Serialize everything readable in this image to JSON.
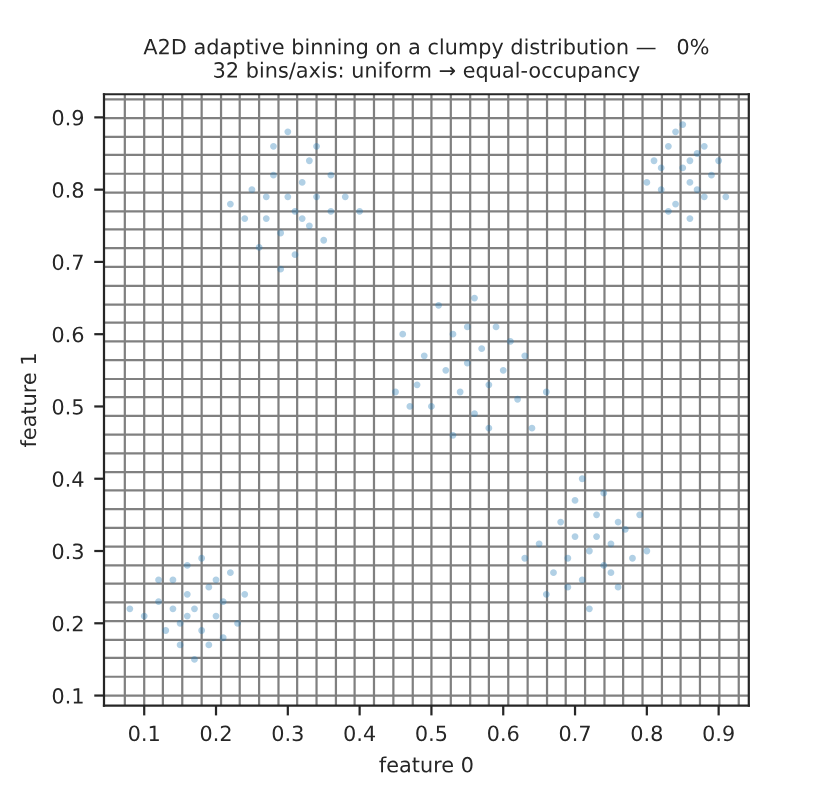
{
  "chart_data": {
    "type": "scatter",
    "title": "A2D adaptive binning on a clumpy distribution —   0%\n32 bins/axis: uniform → equal-occupancy",
    "xlabel": "feature 0",
    "ylabel": "feature 1",
    "xlim": [
      0.044,
      0.942
    ],
    "ylim": [
      0.086,
      0.932
    ],
    "xticks": [
      0.1,
      0.2,
      0.3,
      0.4,
      0.5,
      0.6,
      0.7,
      0.8,
      0.9
    ],
    "yticks": [
      0.1,
      0.2,
      0.3,
      0.4,
      0.5,
      0.6,
      0.7,
      0.8,
      0.9
    ],
    "grid": false,
    "legend": false,
    "series": [
      {
        "color": "#1f77b4",
        "x": [
          0.12,
          0.14,
          0.15,
          0.16,
          0.17,
          0.18,
          0.19,
          0.2,
          0.21,
          0.13,
          0.15,
          0.17,
          0.19,
          0.22,
          0.16,
          0.1,
          0.08,
          0.23,
          0.24,
          0.18,
          0.14,
          0.2,
          0.12,
          0.21,
          0.16,
          0.25,
          0.27,
          0.28,
          0.29,
          0.3,
          0.31,
          0.32,
          0.33,
          0.34,
          0.35,
          0.26,
          0.28,
          0.3,
          0.33,
          0.36,
          0.38,
          0.4,
          0.24,
          0.31,
          0.29,
          0.34,
          0.27,
          0.32,
          0.36,
          0.22,
          0.46,
          0.48,
          0.49,
          0.5,
          0.52,
          0.53,
          0.54,
          0.55,
          0.56,
          0.57,
          0.58,
          0.59,
          0.6,
          0.62,
          0.63,
          0.51,
          0.56,
          0.45,
          0.64,
          0.66,
          0.58,
          0.53,
          0.61,
          0.47,
          0.55,
          0.65,
          0.67,
          0.68,
          0.69,
          0.7,
          0.71,
          0.72,
          0.73,
          0.74,
          0.75,
          0.76,
          0.77,
          0.78,
          0.7,
          0.72,
          0.74,
          0.8,
          0.63,
          0.66,
          0.79,
          0.71,
          0.73,
          0.76,
          0.69,
          0.75,
          0.81,
          0.82,
          0.83,
          0.84,
          0.85,
          0.86,
          0.87,
          0.88,
          0.89,
          0.9,
          0.84,
          0.86,
          0.85,
          0.88,
          0.87,
          0.82,
          0.91,
          0.8,
          0.86,
          0.83
        ],
        "values": [
          0.23,
          0.26,
          0.2,
          0.24,
          0.22,
          0.19,
          0.25,
          0.21,
          0.23,
          0.19,
          0.17,
          0.15,
          0.17,
          0.27,
          0.28,
          0.21,
          0.22,
          0.2,
          0.24,
          0.29,
          0.22,
          0.26,
          0.26,
          0.18,
          0.21,
          0.8,
          0.76,
          0.82,
          0.74,
          0.79,
          0.77,
          0.81,
          0.75,
          0.79,
          0.73,
          0.72,
          0.86,
          0.88,
          0.84,
          0.77,
          0.79,
          0.77,
          0.76,
          0.71,
          0.69,
          0.86,
          0.79,
          0.76,
          0.82,
          0.78,
          0.6,
          0.53,
          0.57,
          0.5,
          0.55,
          0.6,
          0.52,
          0.56,
          0.49,
          0.58,
          0.53,
          0.61,
          0.55,
          0.51,
          0.57,
          0.64,
          0.65,
          0.52,
          0.47,
          0.52,
          0.47,
          0.46,
          0.59,
          0.5,
          0.61,
          0.31,
          0.27,
          0.34,
          0.29,
          0.32,
          0.26,
          0.3,
          0.35,
          0.28,
          0.31,
          0.25,
          0.33,
          0.29,
          0.37,
          0.22,
          0.38,
          0.3,
          0.29,
          0.24,
          0.35,
          0.4,
          0.32,
          0.34,
          0.25,
          0.27,
          0.84,
          0.8,
          0.86,
          0.78,
          0.83,
          0.81,
          0.85,
          0.79,
          0.82,
          0.84,
          0.88,
          0.76,
          0.89,
          0.86,
          0.8,
          0.83,
          0.79,
          0.81,
          0.84,
          0.77
        ]
      }
    ],
    "ref_lines": [
      {
        "axis": "x",
        "value": 0.073,
        "color": "#808080"
      },
      {
        "axis": "x",
        "value": 0.1,
        "color": "#808080"
      },
      {
        "axis": "x",
        "value": 0.126,
        "color": "#808080"
      },
      {
        "axis": "x",
        "value": 0.153,
        "color": "#808080"
      },
      {
        "axis": "x",
        "value": 0.18,
        "color": "#808080"
      },
      {
        "axis": "x",
        "value": 0.207,
        "color": "#808080"
      },
      {
        "axis": "x",
        "value": 0.233,
        "color": "#808080"
      },
      {
        "axis": "x",
        "value": 0.26,
        "color": "#808080"
      },
      {
        "axis": "x",
        "value": 0.287,
        "color": "#808080"
      },
      {
        "axis": "x",
        "value": 0.313,
        "color": "#808080"
      },
      {
        "axis": "x",
        "value": 0.34,
        "color": "#808080"
      },
      {
        "axis": "x",
        "value": 0.367,
        "color": "#808080"
      },
      {
        "axis": "x",
        "value": 0.393,
        "color": "#808080"
      },
      {
        "axis": "x",
        "value": 0.42,
        "color": "#808080"
      },
      {
        "axis": "x",
        "value": 0.447,
        "color": "#808080"
      },
      {
        "axis": "x",
        "value": 0.474,
        "color": "#808080"
      },
      {
        "axis": "x",
        "value": 0.5,
        "color": "#808080"
      },
      {
        "axis": "x",
        "value": 0.527,
        "color": "#808080"
      },
      {
        "axis": "x",
        "value": 0.554,
        "color": "#808080"
      },
      {
        "axis": "x",
        "value": 0.58,
        "color": "#808080"
      },
      {
        "axis": "x",
        "value": 0.607,
        "color": "#808080"
      },
      {
        "axis": "x",
        "value": 0.634,
        "color": "#808080"
      },
      {
        "axis": "x",
        "value": 0.661,
        "color": "#808080"
      },
      {
        "axis": "x",
        "value": 0.687,
        "color": "#808080"
      },
      {
        "axis": "x",
        "value": 0.714,
        "color": "#808080"
      },
      {
        "axis": "x",
        "value": 0.741,
        "color": "#808080"
      },
      {
        "axis": "x",
        "value": 0.767,
        "color": "#808080"
      },
      {
        "axis": "x",
        "value": 0.794,
        "color": "#808080"
      },
      {
        "axis": "x",
        "value": 0.821,
        "color": "#808080"
      },
      {
        "axis": "x",
        "value": 0.847,
        "color": "#808080"
      },
      {
        "axis": "x",
        "value": 0.874,
        "color": "#808080"
      },
      {
        "axis": "x",
        "value": 0.901,
        "color": "#808080"
      },
      {
        "axis": "x",
        "value": 0.928,
        "color": "#808080"
      },
      {
        "axis": "y",
        "value": 0.1,
        "color": "#808080"
      },
      {
        "axis": "y",
        "value": 0.126,
        "color": "#808080"
      },
      {
        "axis": "y",
        "value": 0.152,
        "color": "#808080"
      },
      {
        "axis": "y",
        "value": 0.177,
        "color": "#808080"
      },
      {
        "axis": "y",
        "value": 0.203,
        "color": "#808080"
      },
      {
        "axis": "y",
        "value": 0.229,
        "color": "#808080"
      },
      {
        "axis": "y",
        "value": 0.255,
        "color": "#808080"
      },
      {
        "axis": "y",
        "value": 0.28,
        "color": "#808080"
      },
      {
        "axis": "y",
        "value": 0.306,
        "color": "#808080"
      },
      {
        "axis": "y",
        "value": 0.332,
        "color": "#808080"
      },
      {
        "axis": "y",
        "value": 0.358,
        "color": "#808080"
      },
      {
        "axis": "y",
        "value": 0.384,
        "color": "#808080"
      },
      {
        "axis": "y",
        "value": 0.409,
        "color": "#808080"
      },
      {
        "axis": "y",
        "value": 0.435,
        "color": "#808080"
      },
      {
        "axis": "y",
        "value": 0.461,
        "color": "#808080"
      },
      {
        "axis": "y",
        "value": 0.487,
        "color": "#808080"
      },
      {
        "axis": "y",
        "value": 0.513,
        "color": "#808080"
      },
      {
        "axis": "y",
        "value": 0.538,
        "color": "#808080"
      },
      {
        "axis": "y",
        "value": 0.564,
        "color": "#808080"
      },
      {
        "axis": "y",
        "value": 0.59,
        "color": "#808080"
      },
      {
        "axis": "y",
        "value": 0.616,
        "color": "#808080"
      },
      {
        "axis": "y",
        "value": 0.641,
        "color": "#808080"
      },
      {
        "axis": "y",
        "value": 0.667,
        "color": "#808080"
      },
      {
        "axis": "y",
        "value": 0.693,
        "color": "#808080"
      },
      {
        "axis": "y",
        "value": 0.719,
        "color": "#808080"
      },
      {
        "axis": "y",
        "value": 0.745,
        "color": "#808080"
      },
      {
        "axis": "y",
        "value": 0.77,
        "color": "#808080"
      },
      {
        "axis": "y",
        "value": 0.796,
        "color": "#808080"
      },
      {
        "axis": "y",
        "value": 0.822,
        "color": "#808080"
      },
      {
        "axis": "y",
        "value": 0.848,
        "color": "#808080"
      },
      {
        "axis": "y",
        "value": 0.873,
        "color": "#808080"
      },
      {
        "axis": "y",
        "value": 0.899,
        "color": "#808080"
      },
      {
        "axis": "y",
        "value": 0.925,
        "color": "#808080"
      }
    ]
  }
}
